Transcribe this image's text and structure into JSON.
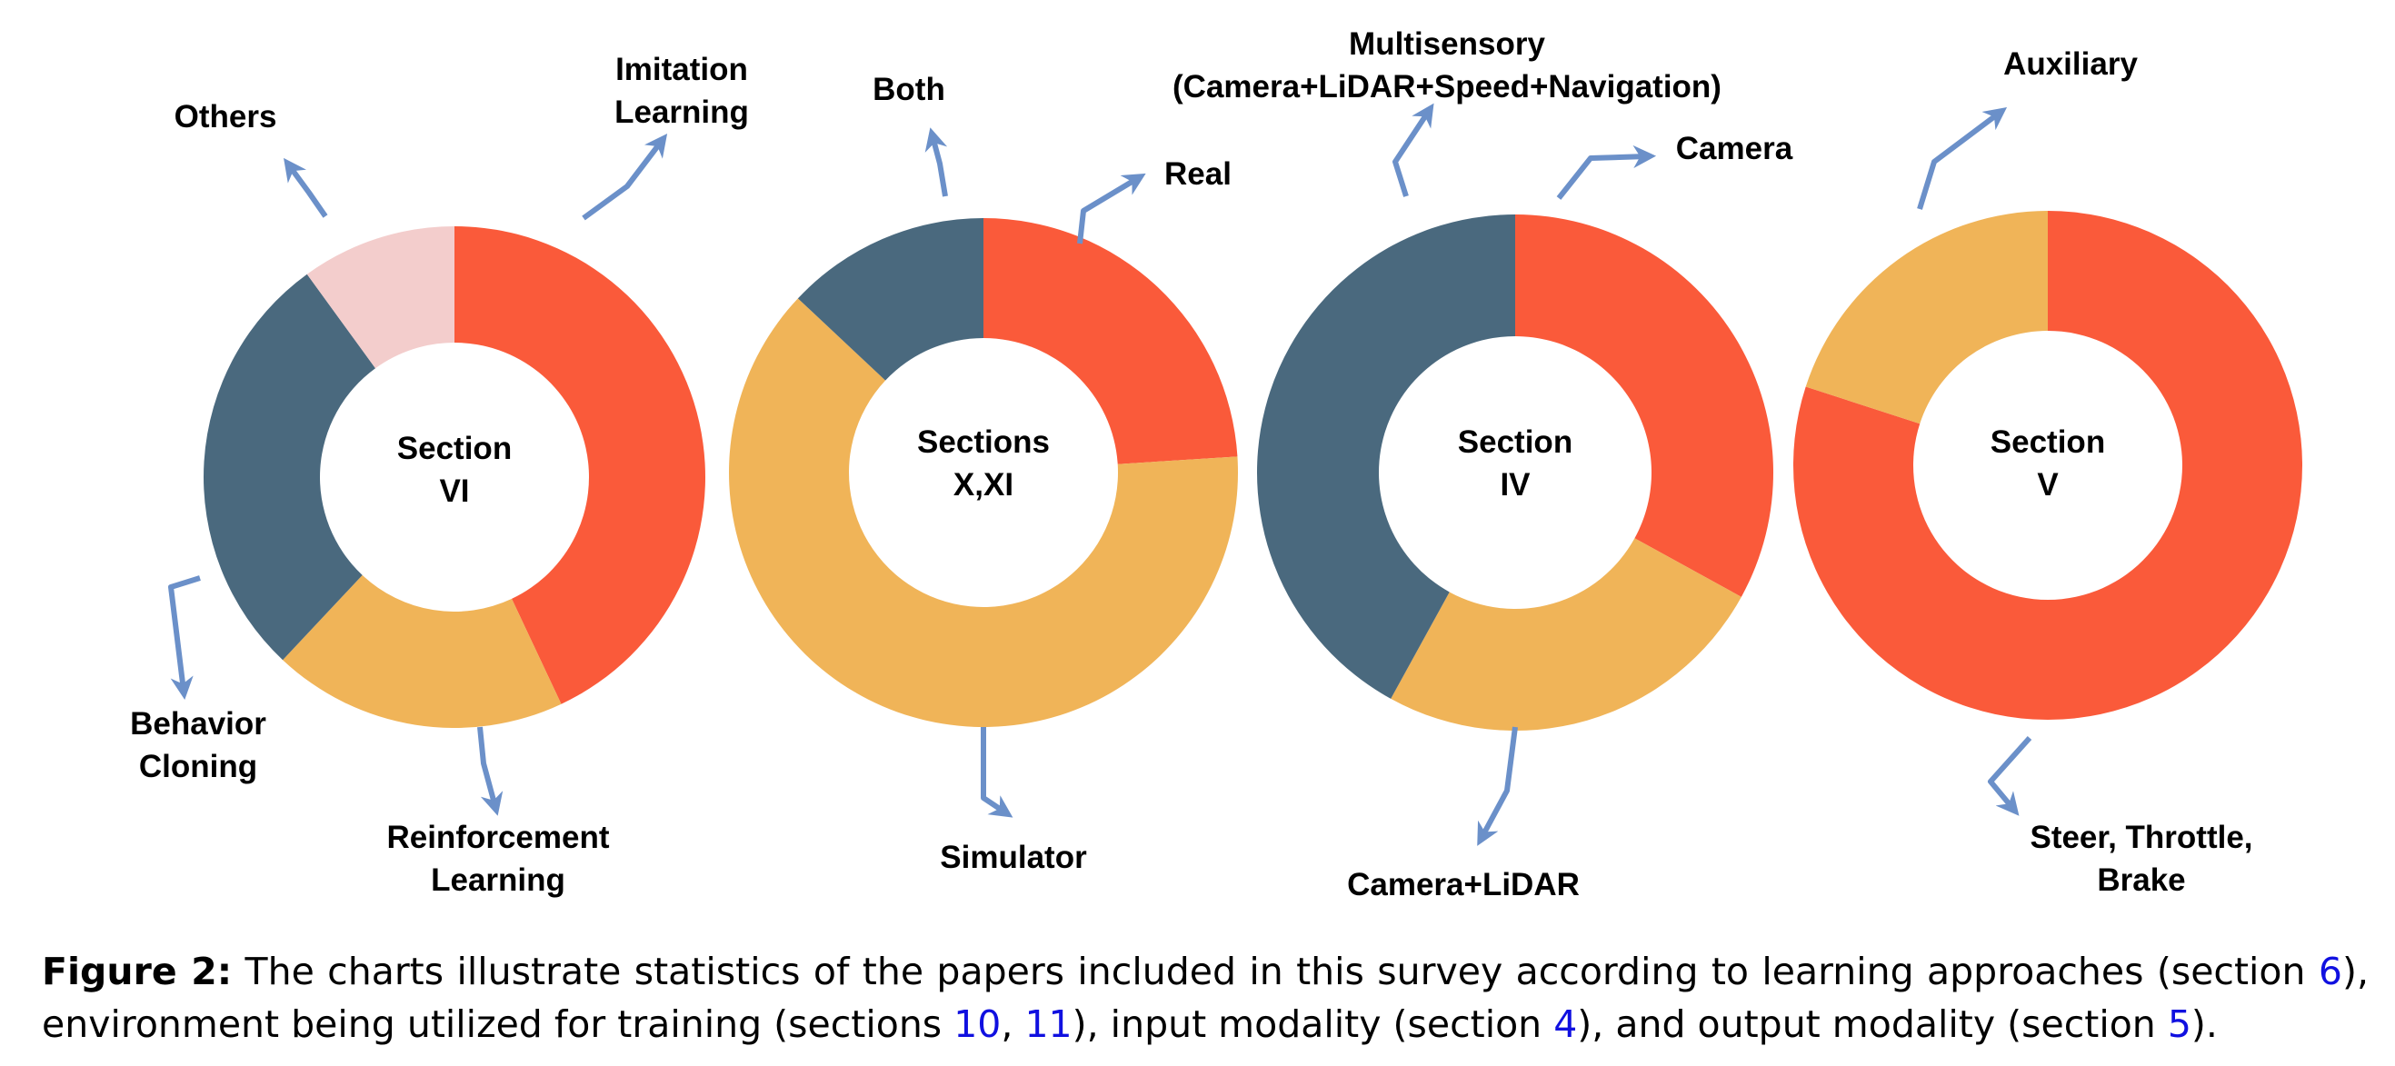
{
  "colors": {
    "red": "#FA5A3A",
    "yellow": "#F0B458",
    "slate": "#4A697E",
    "pink": "#F3CDCC",
    "arrow": "#6B90C9",
    "link": "#1010e0"
  },
  "chart_data": [
    {
      "type": "donut",
      "center_label": [
        "Section",
        "VI"
      ],
      "slices": [
        {
          "label": "Imitation Learning",
          "value": 43,
          "color": "#FA5A3A"
        },
        {
          "label": "Reinforcement Learning",
          "value": 19,
          "color": "#F0B458"
        },
        {
          "label": "Behavior Cloning",
          "value": 28,
          "color": "#4A697E"
        },
        {
          "label": "Others",
          "value": 10,
          "color": "#F3CDCC"
        }
      ]
    },
    {
      "type": "donut",
      "center_label": [
        "Sections",
        "X,XI"
      ],
      "slices": [
        {
          "label": "Real",
          "value": 24,
          "color": "#FA5A3A"
        },
        {
          "label": "Simulator",
          "value": 63,
          "color": "#F0B458"
        },
        {
          "label": "Both",
          "value": 13,
          "color": "#4A697E"
        }
      ]
    },
    {
      "type": "donut",
      "center_label": [
        "Section",
        "IV"
      ],
      "slices": [
        {
          "label": "Camera",
          "value": 33,
          "color": "#FA5A3A"
        },
        {
          "label": "Camera+LiDAR",
          "value": 25,
          "color": "#F0B458"
        },
        {
          "label": "Multisensory (Camera+LiDAR+Speed+Navigation)",
          "value": 42,
          "color": "#4A697E"
        }
      ]
    },
    {
      "type": "donut",
      "center_label": [
        "Section",
        "V"
      ],
      "slices": [
        {
          "label": "Steer, Throttle, Brake",
          "value": 80,
          "color": "#FA5A3A"
        },
        {
          "label": "Auxiliary",
          "value": 20,
          "color": "#F0B458"
        }
      ]
    }
  ],
  "labels": {
    "c1_imitation": [
      "Imitation",
      "Learning"
    ],
    "c1_others": [
      "Others"
    ],
    "c1_behavior": [
      "Behavior",
      "Cloning"
    ],
    "c1_reinforcement": [
      "Reinforcement",
      "Learning"
    ],
    "c2_both": [
      "Both"
    ],
    "c2_real": [
      "Real"
    ],
    "c2_simulator": [
      "Simulator"
    ],
    "c3_multisensory": [
      "Multisensory",
      "(Camera+LiDAR+Speed+Navigation)"
    ],
    "c3_camera": [
      "Camera"
    ],
    "c3_cameralidar": [
      "Camera+LiDAR"
    ],
    "c4_auxiliary": [
      "Auxiliary"
    ],
    "c4_steer": [
      "Steer, Throttle,",
      "Brake"
    ]
  },
  "caption": {
    "tag": "Figure 2:",
    "part1": " The charts illustrate statistics of the papers included in this survey according to learning approaches (section ",
    "ref1": "6",
    "part2": "), environment being utilized for training (sections ",
    "ref2": "10",
    "sep": ", ",
    "ref3": "11",
    "part3": "), input modality (section ",
    "ref4": "4",
    "part4": "), and output modality (section ",
    "ref5": "5",
    "part5": ")."
  }
}
